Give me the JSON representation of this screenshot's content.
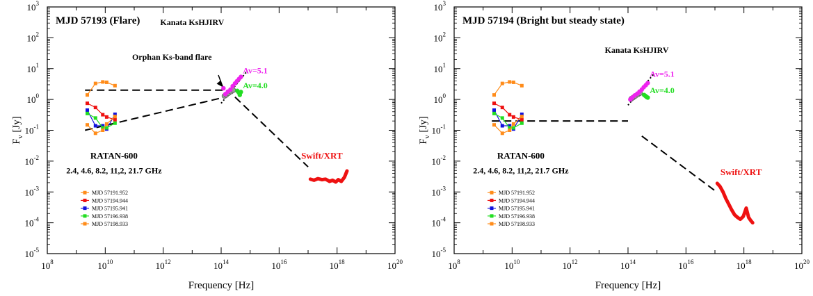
{
  "colors": {
    "orange": "#ff8c1a",
    "red": "#ee1111",
    "blue": "#1111dd",
    "green": "#22dd22",
    "magenta": "#ee22ee",
    "black": "#000000"
  },
  "chart_data": [
    {
      "type": "scatter",
      "title": "MJD 57193 (Flare)",
      "xlabel": "Frequency [Hz]",
      "ylabel": "F_ν [Jy]",
      "xscale": "log",
      "yscale": "log",
      "xlim": [
        100000000.0,
        1e+20
      ],
      "ylim": [
        1e-05,
        1000.0
      ],
      "annotations": {
        "kanata": "Kanata KsHJIRV",
        "orphan": "Orphan Ks-band flare",
        "av51": "Av=5.1",
        "av40": "Av=4.0",
        "ratan": "RATAN-600",
        "ratan_freqs": "2.4, 4.6, 8.2, 11,2, 21.7 GHz",
        "swift": "Swift/XRT"
      },
      "radio_freqs_ghz": [
        2.4,
        4.6,
        8.2,
        11.2,
        21.7
      ],
      "radio_series": [
        {
          "name": "MJD 57191.952",
          "color": "orange",
          "values": [
            1.4,
            3.3,
            3.7,
            3.6,
            2.8
          ]
        },
        {
          "name": "MJD 57194.944",
          "color": "red",
          "values": [
            0.75,
            0.55,
            0.32,
            0.27,
            0.22
          ]
        },
        {
          "name": "MJD 57195.941",
          "color": "blue",
          "values": [
            0.45,
            0.14,
            0.14,
            0.11,
            0.33
          ]
        },
        {
          "name": "MJD 57196.938",
          "color": "green",
          "values": [
            0.35,
            0.25,
            0.12,
            0.12,
            0.17
          ]
        },
        {
          "name": "MJD 57198.933",
          "color": "orange",
          "values": [
            0.15,
            0.08,
            0.1,
            0.16,
            0.28
          ]
        }
      ],
      "dashed_lines": [
        {
          "x": [
            2000000000.0,
            140000000000000.0
          ],
          "y": [
            2.0,
            2.0
          ]
        },
        {
          "x": [
            2000000000.0,
            140000000000000.0
          ],
          "y": [
            0.1,
            1.2
          ]
        },
        {
          "x": [
            300000000000000.0,
            1e+17
          ],
          "y": [
            1.2,
            0.0065
          ]
        }
      ],
      "dotted_line": {
        "x": [
          100000000000000.0,
          800000000000000.0
        ],
        "y": [
          0.75,
          8.5
        ]
      },
      "nir_magenta": {
        "x": [
          120000000000000.0,
          140000000000000.0,
          170000000000000.0,
          210000000000000.0,
          250000000000000.0,
          300000000000000.0,
          350000000000000.0,
          410000000000000.0,
          480000000000000.0
        ],
        "y": [
          2.3,
          1.5,
          1.8,
          2.1,
          2.7,
          3.3,
          3.9,
          4.6,
          5.4
        ]
      },
      "nir_grey": {
        "x": [
          130000000000000.0,
          150000000000000.0,
          180000000000000.0,
          220000000000000.0,
          260000000000000.0
        ],
        "y": [
          1.3,
          1.4,
          1.6,
          1.8,
          2.0
        ]
      },
      "nir_green": {
        "x": [
          360000000000000.0,
          400000000000000.0,
          440000000000000.0,
          480000000000000.0
        ],
        "y": [
          1.9,
          1.7,
          1.4,
          1.75
        ]
      },
      "xray": {
        "x": [
          1.2e+17,
          1.6e+17,
          2.2e+17,
          3e+17,
          4e+17,
          5.5e+17,
          7e+17,
          9e+17,
          1.1e+18,
          1.4e+18,
          1.8e+18,
          2.2e+18
        ],
        "y": [
          0.0026,
          0.0024,
          0.0027,
          0.0025,
          0.0026,
          0.0022,
          0.0024,
          0.0021,
          0.0025,
          0.0022,
          0.003,
          0.0048
        ]
      }
    },
    {
      "type": "scatter",
      "title": "MJD 57194 (Bright but steady state)",
      "xlabel": "Frequency [Hz]",
      "ylabel": "F_ν [Jy]",
      "xscale": "log",
      "yscale": "log",
      "xlim": [
        100000000.0,
        1e+20
      ],
      "ylim": [
        1e-05,
        1000.0
      ],
      "annotations": {
        "kanata": "Kanata KsHJIRV",
        "orphan": "",
        "av51": "Av=5.1",
        "av40": "Av=4.0",
        "ratan": "RATAN-600",
        "ratan_freqs": "2.4, 4.6, 8.2, 11,2, 21.7 GHz",
        "swift": "Swift/XRT"
      },
      "radio_freqs_ghz": [
        2.4,
        4.6,
        8.2,
        11.2,
        21.7
      ],
      "radio_series": [
        {
          "name": "MJD 57191.952",
          "color": "orange",
          "values": [
            1.4,
            3.3,
            3.7,
            3.6,
            2.8
          ]
        },
        {
          "name": "MJD 57194.944",
          "color": "red",
          "values": [
            0.75,
            0.55,
            0.32,
            0.27,
            0.22
          ]
        },
        {
          "name": "MJD 57195.941",
          "color": "blue",
          "values": [
            0.45,
            0.14,
            0.14,
            0.11,
            0.33
          ]
        },
        {
          "name": "MJD 57196.938",
          "color": "green",
          "values": [
            0.35,
            0.25,
            0.12,
            0.12,
            0.17
          ]
        },
        {
          "name": "MJD 57198.933",
          "color": "orange",
          "values": [
            0.15,
            0.08,
            0.1,
            0.16,
            0.28
          ]
        }
      ],
      "dashed_lines": [
        {
          "x": [
            2000000000.0,
            100000000000000.0
          ],
          "y": [
            0.2,
            0.2
          ]
        },
        {
          "x": [
            300000000000000.0,
            1e+17
          ],
          "y": [
            0.065,
            0.0011
          ]
        }
      ],
      "dotted_line": {
        "x": [
          100000000000000.0,
          800000000000000.0
        ],
        "y": [
          0.65,
          7.0
        ]
      },
      "nir_magenta": {
        "x": [
          120000000000000.0,
          140000000000000.0,
          170000000000000.0,
          210000000000000.0,
          250000000000000.0,
          300000000000000.0,
          350000000000000.0,
          410000000000000.0,
          480000000000000.0
        ],
        "y": [
          1.0,
          1.15,
          1.35,
          1.55,
          1.8,
          2.1,
          2.5,
          2.9,
          3.4
        ]
      },
      "nir_grey": {
        "x": [
          130000000000000.0,
          150000000000000.0,
          180000000000000.0,
          220000000000000.0,
          260000000000000.0
        ],
        "y": [
          1.05,
          1.15,
          1.3,
          1.45,
          1.6
        ]
      },
      "nir_green": {
        "x": [
          360000000000000.0,
          400000000000000.0,
          440000000000000.0,
          480000000000000.0
        ],
        "y": [
          1.4,
          1.3,
          1.2,
          1.15
        ]
      },
      "xray": {
        "x": [
          1.2e+17,
          1.5e+17,
          1.9e+17,
          2.4e+17,
          3e+17,
          3.8e+17,
          4.8e+17,
          6e+17,
          7.5e+17,
          9.5e+17,
          1.2e+18,
          1.45e+18,
          1.7e+18,
          2e+18
        ],
        "y": [
          0.0019,
          0.0015,
          0.001,
          0.0006,
          0.0004,
          0.00026,
          0.00018,
          0.00015,
          0.00013,
          0.00016,
          0.0003,
          0.00015,
          0.00012,
          0.0001
        ]
      }
    }
  ]
}
